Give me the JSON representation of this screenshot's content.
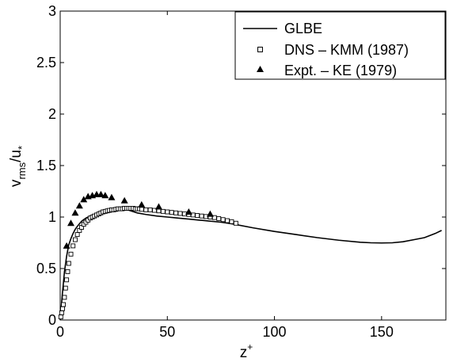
{
  "chart_data": {
    "type": "line",
    "xlim": [
      0,
      180
    ],
    "ylim": [
      0,
      3
    ],
    "x_ticks": [
      0,
      50,
      100,
      150
    ],
    "x_tick_labels": [
      "0",
      "50",
      "100",
      "150"
    ],
    "y_ticks": [
      0,
      0.5,
      1,
      1.5,
      2,
      2.5,
      3
    ],
    "y_tick_labels": [
      "0",
      "0.5",
      "1",
      "1.5",
      "2",
      "2.5",
      "3"
    ],
    "xlabel": {
      "base": "z",
      "sup": "+"
    },
    "ylabel": {
      "base1": "v",
      "sub1": "rms",
      "mid": "/u",
      "sub2": "*"
    },
    "grid": false,
    "legend_position": "top-right",
    "series": [
      {
        "name": "GLBE",
        "marker": "line",
        "color": "#000000",
        "x": [
          0,
          0.5,
          1,
          1.5,
          2,
          3,
          4,
          5,
          6,
          7,
          8,
          10,
          12,
          15,
          18,
          20,
          23,
          26,
          30,
          33,
          36,
          40,
          45,
          50,
          55,
          60,
          65,
          70,
          75,
          80,
          90,
          100,
          110,
          120,
          130,
          140,
          145,
          150,
          155,
          160,
          165,
          170,
          175,
          178
        ],
        "y": [
          0,
          0.12,
          0.25,
          0.36,
          0.47,
          0.62,
          0.73,
          0.79,
          0.84,
          0.88,
          0.91,
          0.96,
          0.99,
          1.02,
          1.04,
          1.05,
          1.065,
          1.075,
          1.08,
          1.06,
          1.04,
          1.025,
          1.01,
          1.0,
          0.99,
          0.98,
          0.97,
          0.96,
          0.95,
          0.935,
          0.895,
          0.86,
          0.83,
          0.8,
          0.775,
          0.755,
          0.75,
          0.748,
          0.75,
          0.76,
          0.78,
          0.8,
          0.84,
          0.87
        ]
      },
      {
        "name": "DNS – KMM (1987)",
        "marker": "square",
        "color": "#000000",
        "x": [
          0.3,
          0.7,
          1.1,
          1.5,
          2,
          2.5,
          3,
          3.5,
          4,
          5,
          6,
          7,
          8,
          9,
          10,
          11,
          12,
          13,
          14,
          15,
          16,
          17,
          18,
          19,
          20,
          21,
          22,
          23,
          24,
          25,
          26,
          27,
          28,
          29,
          30,
          31,
          32,
          33,
          34,
          35,
          36,
          37,
          38,
          40,
          42,
          44,
          46,
          48,
          50,
          52,
          54,
          56,
          58,
          60,
          62,
          64,
          66,
          68,
          70,
          72,
          74,
          76,
          78,
          80,
          82
        ],
        "y": [
          0.03,
          0.07,
          0.11,
          0.15,
          0.22,
          0.31,
          0.39,
          0.47,
          0.55,
          0.64,
          0.72,
          0.78,
          0.83,
          0.87,
          0.9,
          0.93,
          0.95,
          0.97,
          0.99,
          1.0,
          1.01,
          1.02,
          1.03,
          1.04,
          1.05,
          1.055,
          1.06,
          1.065,
          1.07,
          1.07,
          1.075,
          1.08,
          1.08,
          1.08,
          1.085,
          1.085,
          1.085,
          1.085,
          1.085,
          1.08,
          1.08,
          1.08,
          1.075,
          1.07,
          1.07,
          1.065,
          1.06,
          1.055,
          1.05,
          1.045,
          1.04,
          1.035,
          1.03,
          1.025,
          1.02,
          1.015,
          1.01,
          1.005,
          1.0,
          0.995,
          0.985,
          0.975,
          0.965,
          0.955,
          0.94
        ]
      },
      {
        "name": "Expt. – KE (1979)",
        "marker": "triangle",
        "color": "#000000",
        "x": [
          3,
          5,
          7,
          9,
          11,
          13,
          15,
          17,
          19,
          21,
          24,
          30,
          38,
          46,
          60,
          70
        ],
        "y": [
          0.72,
          0.94,
          1.04,
          1.11,
          1.17,
          1.2,
          1.21,
          1.22,
          1.22,
          1.21,
          1.19,
          1.16,
          1.12,
          1.1,
          1.05,
          1.03
        ]
      }
    ]
  }
}
